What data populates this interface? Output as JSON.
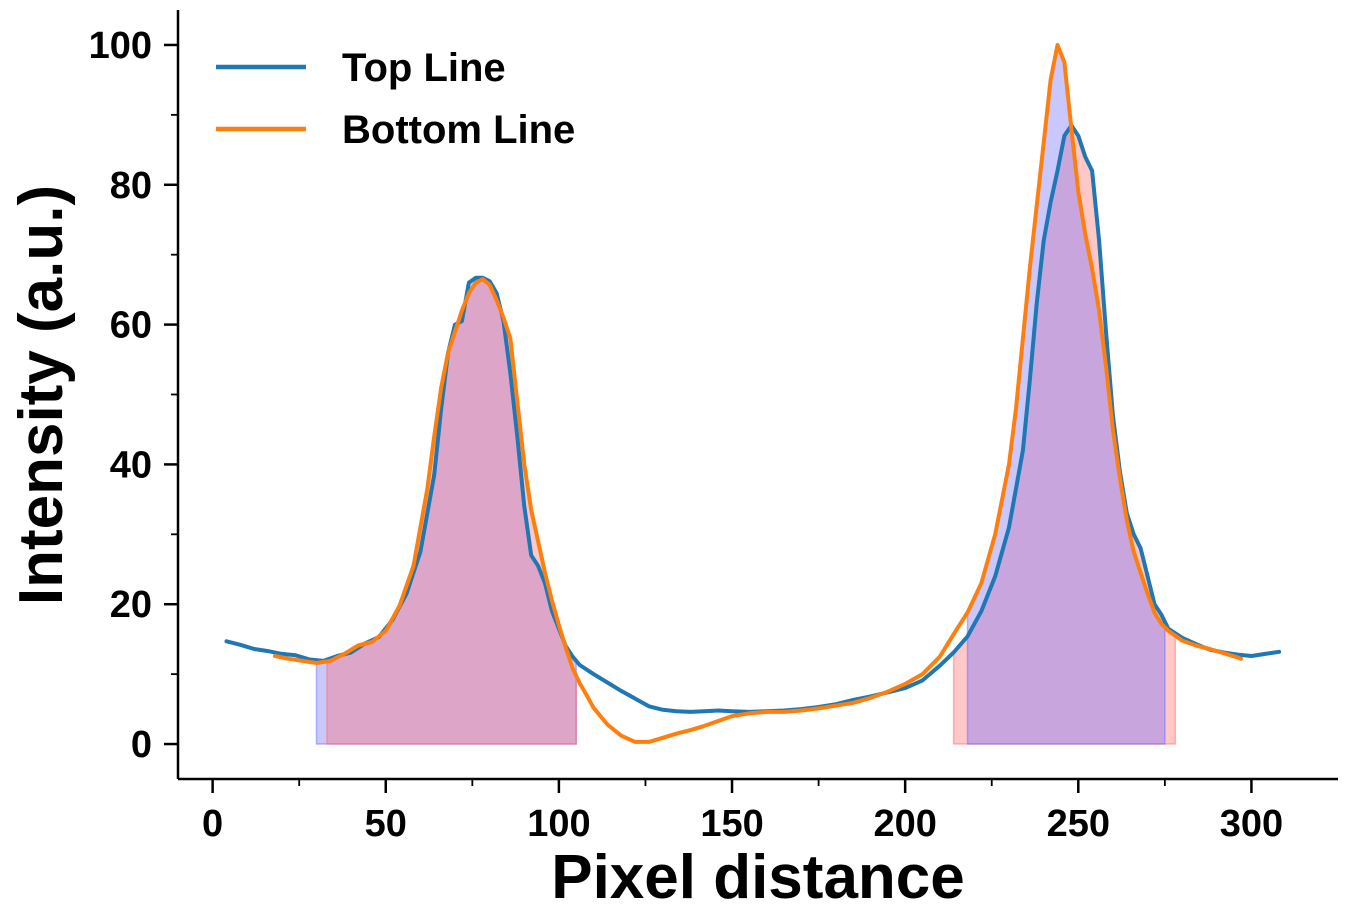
{
  "chart_data": {
    "type": "line",
    "xlabel": "Pixel distance",
    "ylabel": "Intensity (a.u.)",
    "xlim": [
      -10,
      325
    ],
    "ylim": [
      -5,
      105
    ],
    "x_ticks": [
      0,
      50,
      100,
      150,
      200,
      250,
      300
    ],
    "x_tick_labels": [
      "0",
      "50",
      "100",
      "150",
      "200",
      "250",
      "300"
    ],
    "y_ticks": [
      0,
      20,
      40,
      60,
      80,
      100
    ],
    "y_tick_labels": [
      "0",
      "20",
      "40",
      "60",
      "80",
      "100"
    ],
    "x_minor_step": 25,
    "y_minor_step": 10,
    "grid": false,
    "legend_position": "top-left",
    "series": [
      {
        "name": "Top Line",
        "color": "#1f77b4",
        "points": [
          [
            4,
            14.7
          ],
          [
            8,
            14.2
          ],
          [
            12,
            13.6
          ],
          [
            16,
            13.3
          ],
          [
            20,
            12.9
          ],
          [
            24,
            12.7
          ],
          [
            28,
            12.1
          ],
          [
            32,
            11.9
          ],
          [
            36,
            12.6
          ],
          [
            40,
            13.1
          ],
          [
            44,
            14.4
          ],
          [
            48,
            15.3
          ],
          [
            52,
            17.8
          ],
          [
            56,
            21.5
          ],
          [
            60,
            27.5
          ],
          [
            64,
            38.5
          ],
          [
            66,
            48
          ],
          [
            68,
            56
          ],
          [
            70,
            60
          ],
          [
            72,
            60.5
          ],
          [
            74,
            66
          ],
          [
            76,
            66.7
          ],
          [
            78,
            66.7
          ],
          [
            80,
            66.2
          ],
          [
            82,
            64.5
          ],
          [
            84,
            60.5
          ],
          [
            86,
            53
          ],
          [
            88,
            44
          ],
          [
            90,
            34
          ],
          [
            92,
            27
          ],
          [
            94,
            25.5
          ],
          [
            96,
            23
          ],
          [
            98,
            19
          ],
          [
            100,
            16.5
          ],
          [
            102,
            14
          ],
          [
            104,
            12.5
          ],
          [
            106,
            11.3
          ],
          [
            110,
            10
          ],
          [
            114,
            8.8
          ],
          [
            118,
            7.6
          ],
          [
            122,
            6.5
          ],
          [
            126,
            5.4
          ],
          [
            130,
            4.9
          ],
          [
            134,
            4.7
          ],
          [
            138,
            4.6
          ],
          [
            142,
            4.7
          ],
          [
            146,
            4.8
          ],
          [
            150,
            4.7
          ],
          [
            155,
            4.6
          ],
          [
            160,
            4.7
          ],
          [
            165,
            4.8
          ],
          [
            170,
            5.0
          ],
          [
            175,
            5.3
          ],
          [
            180,
            5.7
          ],
          [
            185,
            6.3
          ],
          [
            190,
            6.8
          ],
          [
            195,
            7.4
          ],
          [
            200,
            8.0
          ],
          [
            205,
            9.1
          ],
          [
            210,
            11.2
          ],
          [
            214,
            13.1
          ],
          [
            218,
            15.4
          ],
          [
            222,
            19
          ],
          [
            226,
            24
          ],
          [
            230,
            31
          ],
          [
            234,
            42
          ],
          [
            236,
            52
          ],
          [
            238,
            63
          ],
          [
            240,
            72
          ],
          [
            242,
            77.5
          ],
          [
            244,
            82
          ],
          [
            246,
            87
          ],
          [
            248,
            88.5
          ],
          [
            250,
            87
          ],
          [
            252,
            84
          ],
          [
            254,
            82
          ],
          [
            256,
            72
          ],
          [
            258,
            59
          ],
          [
            260,
            47
          ],
          [
            262,
            39
          ],
          [
            264,
            33
          ],
          [
            266,
            30
          ],
          [
            268,
            28
          ],
          [
            270,
            24
          ],
          [
            272,
            20
          ],
          [
            274,
            18.5
          ],
          [
            276,
            16.5
          ],
          [
            280,
            15.2
          ],
          [
            284,
            14.3
          ],
          [
            288,
            13.5
          ],
          [
            292,
            13.1
          ],
          [
            296,
            12.8
          ],
          [
            300,
            12.6
          ],
          [
            304,
            12.9
          ],
          [
            308,
            13.2
          ]
        ]
      },
      {
        "name": "Bottom Line",
        "color": "#ff7f0e",
        "points": [
          [
            18,
            12.6
          ],
          [
            22,
            12.2
          ],
          [
            26,
            11.9
          ],
          [
            30,
            11.6
          ],
          [
            34,
            11.9
          ],
          [
            38,
            12.9
          ],
          [
            42,
            14.1
          ],
          [
            46,
            14.6
          ],
          [
            50,
            16.2
          ],
          [
            54,
            19.8
          ],
          [
            58,
            25.5
          ],
          [
            62,
            36.5
          ],
          [
            64,
            44
          ],
          [
            66,
            51
          ],
          [
            68,
            56
          ],
          [
            70,
            59
          ],
          [
            72,
            62
          ],
          [
            74,
            64.5
          ],
          [
            76,
            66
          ],
          [
            78,
            66.5
          ],
          [
            80,
            65.7
          ],
          [
            82,
            63.5
          ],
          [
            84,
            61
          ],
          [
            86,
            58
          ],
          [
            88,
            49
          ],
          [
            90,
            40
          ],
          [
            92,
            33.5
          ],
          [
            94,
            29
          ],
          [
            96,
            24.5
          ],
          [
            98,
            20.5
          ],
          [
            100,
            17
          ],
          [
            102,
            13.8
          ],
          [
            104,
            10.8
          ],
          [
            106,
            8.7
          ],
          [
            108,
            7.0
          ],
          [
            110,
            5.2
          ],
          [
            114,
            2.8
          ],
          [
            118,
            1.2
          ],
          [
            122,
            0.3
          ],
          [
            126,
            0.3
          ],
          [
            130,
            0.9
          ],
          [
            134,
            1.5
          ],
          [
            138,
            2.0
          ],
          [
            142,
            2.6
          ],
          [
            146,
            3.3
          ],
          [
            150,
            4.0
          ],
          [
            155,
            4.4
          ],
          [
            160,
            4.6
          ],
          [
            165,
            4.6
          ],
          [
            170,
            4.8
          ],
          [
            175,
            5.1
          ],
          [
            180,
            5.5
          ],
          [
            185,
            5.9
          ],
          [
            190,
            6.6
          ],
          [
            195,
            7.5
          ],
          [
            200,
            8.6
          ],
          [
            205,
            10.0
          ],
          [
            210,
            12.5
          ],
          [
            214,
            15.7
          ],
          [
            218,
            18.8
          ],
          [
            222,
            23
          ],
          [
            226,
            30
          ],
          [
            230,
            40
          ],
          [
            232,
            48
          ],
          [
            234,
            58
          ],
          [
            236,
            68
          ],
          [
            238,
            77
          ],
          [
            240,
            86
          ],
          [
            242,
            95
          ],
          [
            244,
            100
          ],
          [
            246,
            97.5
          ],
          [
            248,
            88
          ],
          [
            250,
            79
          ],
          [
            252,
            73
          ],
          [
            254,
            68
          ],
          [
            256,
            62
          ],
          [
            258,
            54
          ],
          [
            260,
            45
          ],
          [
            262,
            38
          ],
          [
            264,
            32
          ],
          [
            266,
            27.5
          ],
          [
            268,
            24.5
          ],
          [
            270,
            21.5
          ],
          [
            272,
            18.8
          ],
          [
            274,
            17.2
          ],
          [
            276,
            16.2
          ],
          [
            280,
            14.8
          ],
          [
            284,
            14.1
          ],
          [
            288,
            13.6
          ],
          [
            292,
            13.0
          ],
          [
            296,
            12.4
          ],
          [
            297,
            12.2
          ]
        ]
      }
    ],
    "fills": [
      {
        "series": "Top Line",
        "x_range": [
          30,
          105
        ],
        "color": "#6f6fff"
      },
      {
        "series": "Bottom Line",
        "x_range": [
          33,
          105
        ],
        "color": "#ff6f6f"
      },
      {
        "series": "Top Line",
        "x_range": [
          214,
          278
        ],
        "color": "#ff6f6f"
      },
      {
        "series": "Bottom Line",
        "x_range": [
          218,
          275
        ],
        "color": "#6f6fff"
      }
    ]
  }
}
